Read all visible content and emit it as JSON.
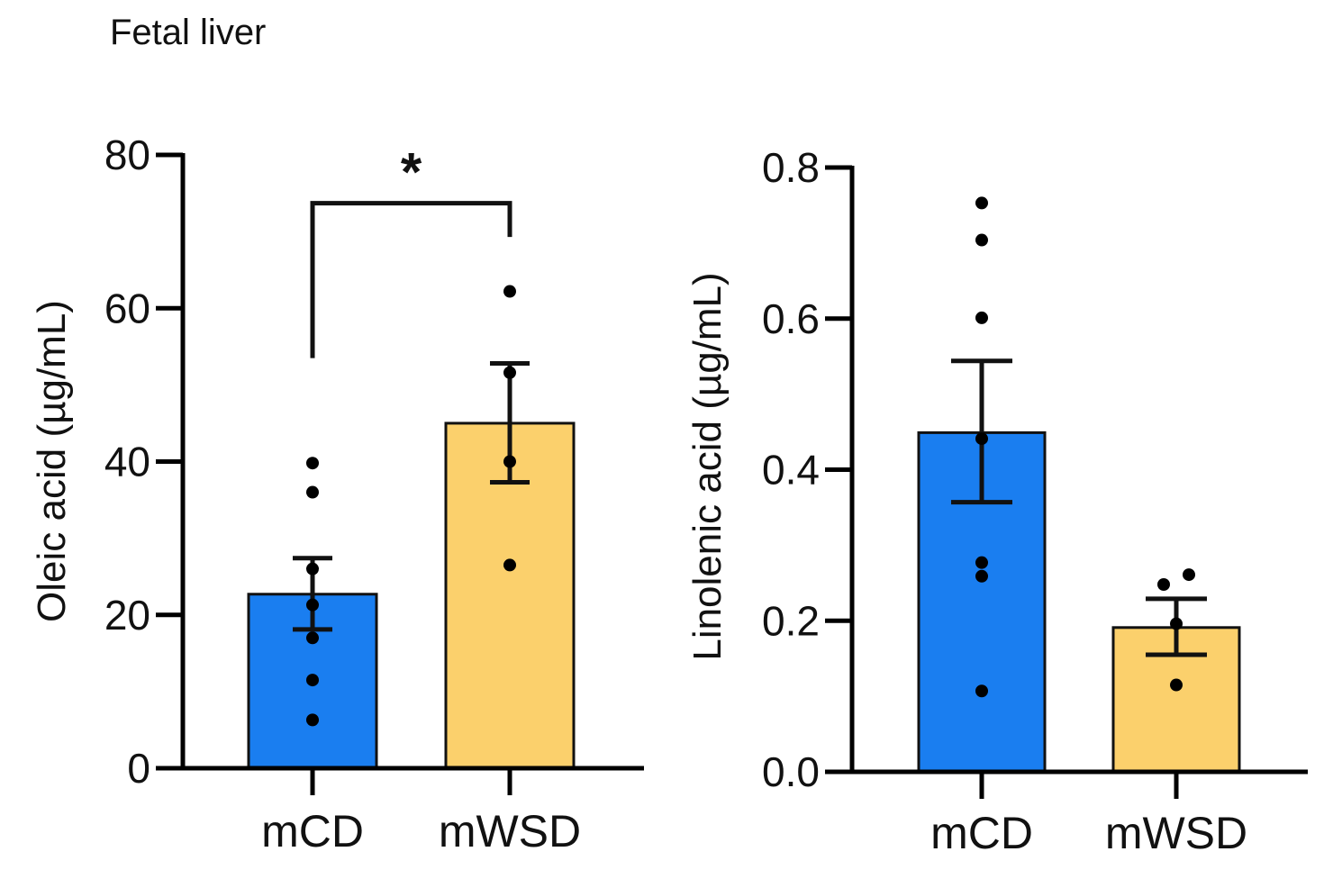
{
  "figure_title": "Fetal liver",
  "colors": {
    "mCD": "#1a7ef0",
    "mWSD": "#fbd06c",
    "axis": "#000000"
  },
  "chart_data": [
    {
      "type": "bar",
      "title": "",
      "categories": [
        "mCD",
        "mWSD"
      ],
      "values": [
        22.7,
        45.0
      ],
      "error_upper": [
        27.4,
        52.8
      ],
      "error_lower": [
        18.1,
        37.3
      ],
      "points": [
        [
          39.8,
          36.0,
          26.0,
          21.3,
          17.0,
          11.5,
          6.3
        ],
        [
          62.2,
          51.6,
          40.0,
          26.5
        ]
      ],
      "xlabel": "",
      "ylabel": "Oleic acid (µg/mL)",
      "ylim": [
        0,
        80
      ],
      "yticks": [
        0,
        20,
        40,
        60,
        80
      ],
      "ytick_labels": [
        "0",
        "20",
        "40",
        "60",
        "80"
      ],
      "significance": {
        "between": [
          "mCD",
          "mWSD"
        ],
        "label": "*"
      }
    },
    {
      "type": "bar",
      "title": "",
      "categories": [
        "mCD",
        "mWSD"
      ],
      "values": [
        0.449,
        0.191
      ],
      "error_upper": [
        0.544,
        0.229
      ],
      "error_lower": [
        0.357,
        0.155
      ],
      "points": [
        [
          0.753,
          0.704,
          0.601,
          0.441,
          0.277,
          0.259,
          0.107
        ],
        [
          0.248,
          0.261,
          0.196,
          0.115
        ]
      ],
      "xlabel": "",
      "ylabel": "Linolenic acid (µg/mL)",
      "ylim": [
        0,
        0.8
      ],
      "yticks": [
        0,
        0.2,
        0.4,
        0.6,
        0.8
      ],
      "ytick_labels": [
        "0.0",
        "0.2",
        "0.4",
        "0.6",
        "0.8"
      ]
    }
  ]
}
